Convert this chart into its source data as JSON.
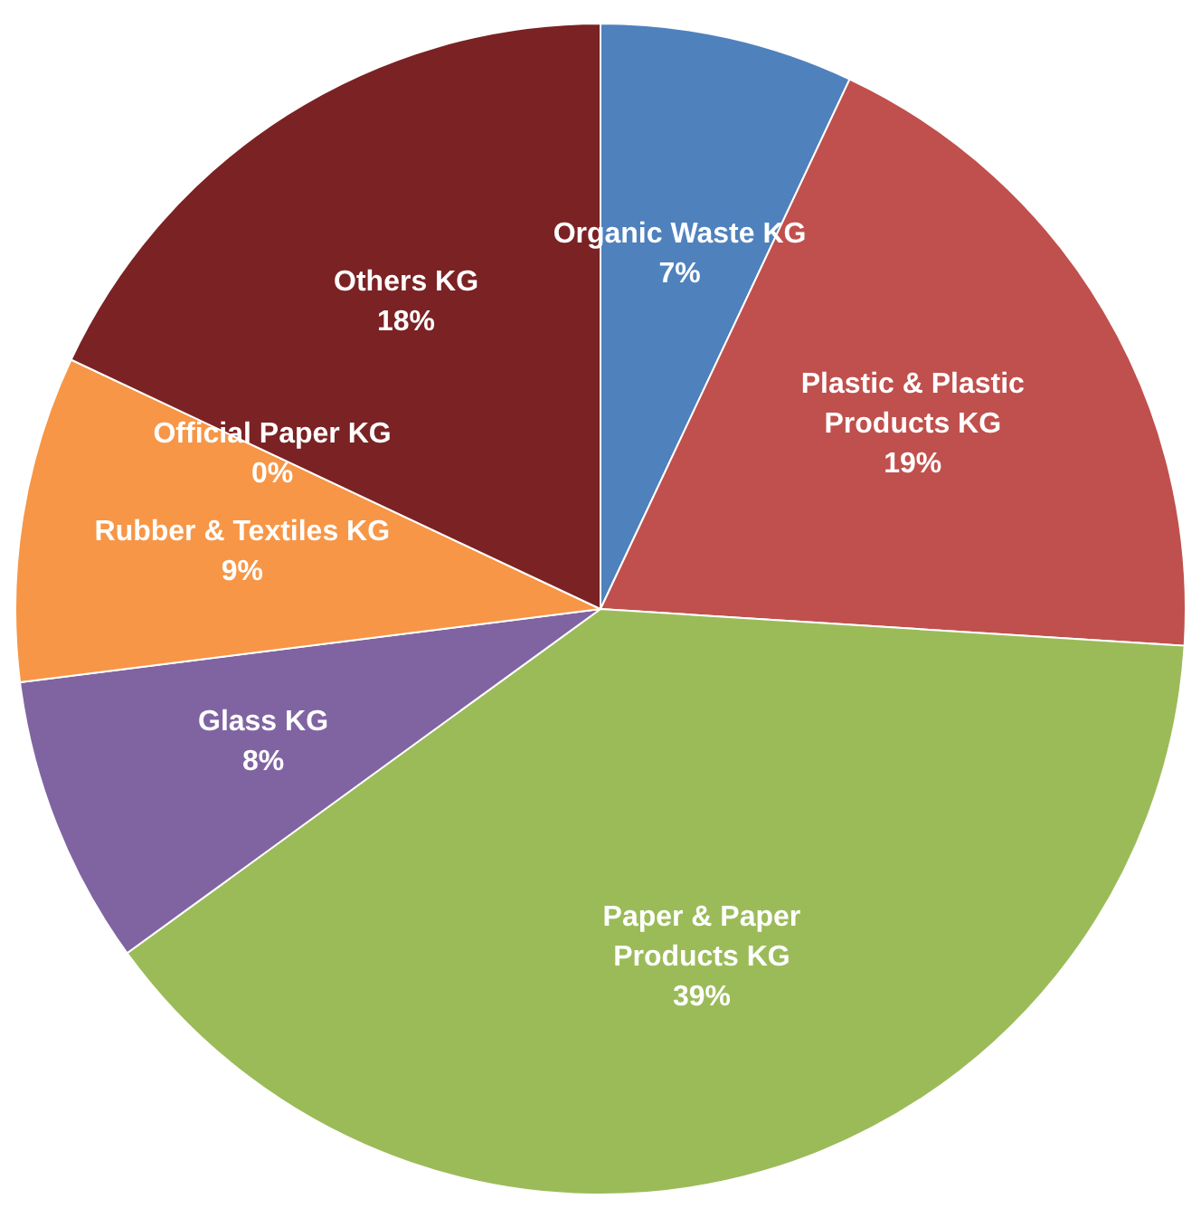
{
  "chart_data": {
    "type": "pie",
    "categories": [
      "Organic Waste KG",
      "Plastic & Plastic Products KG",
      "Paper & Paper Products KG",
      "Glass KG",
      "Rubber & Textiles KG",
      "Official Paper KG",
      "Others KG"
    ],
    "values": [
      7,
      19,
      39,
      8,
      9,
      0,
      18
    ],
    "value_labels": [
      "7%",
      "19%",
      "39%",
      "8%",
      "9%",
      "0%",
      "18%"
    ],
    "colors": [
      "#4f81bd",
      "#c0504d",
      "#9bbb59",
      "#8064a2",
      "#f79646",
      "#c9c9c9",
      "#7b2224"
    ],
    "legend": false
  }
}
